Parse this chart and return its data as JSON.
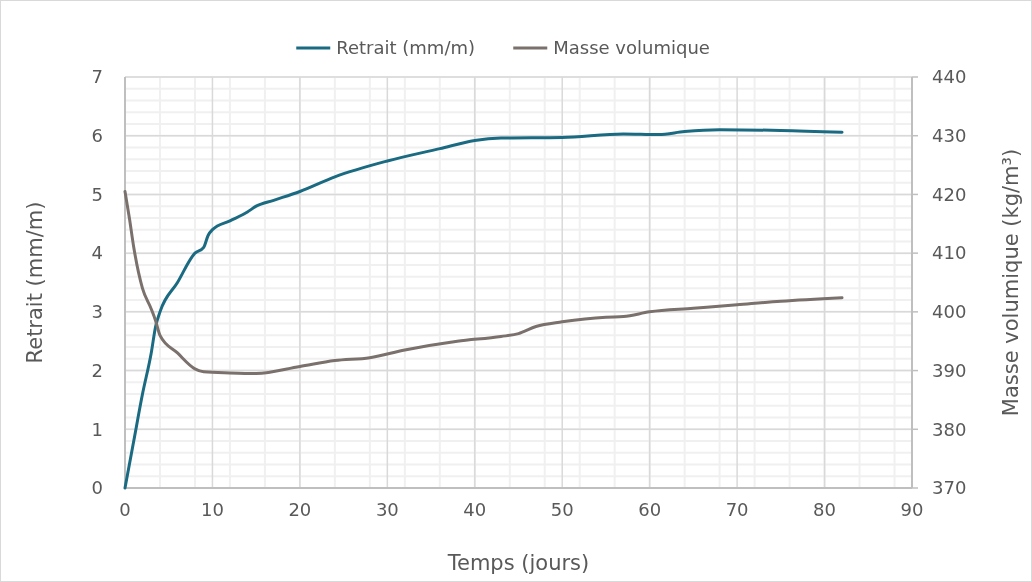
{
  "chart_data": {
    "type": "line",
    "xlabel": "Temps (jours)",
    "ylabel": "Retrait (mm/m)",
    "y2label": "Masse volumique (kg/m³)",
    "xlim": [
      0,
      90
    ],
    "xticks": [
      0,
      10,
      20,
      30,
      40,
      50,
      60,
      70,
      80,
      90
    ],
    "ylim": [
      0,
      7
    ],
    "yticks": [
      0,
      1,
      2,
      3,
      4,
      5,
      6,
      7
    ],
    "y2lim": [
      370,
      440
    ],
    "y2ticks": [
      370,
      380,
      390,
      400,
      410,
      420,
      430,
      440
    ],
    "grid": true,
    "legend": "top",
    "marker": "none",
    "line_style": "solid",
    "series": [
      {
        "name": "Retrait (mm/m)",
        "color": "#1a6a82",
        "x": [
          0,
          1,
          2,
          3,
          3.5,
          4,
          6,
          8,
          9,
          9.5,
          10,
          12,
          14,
          15,
          17,
          20,
          24,
          30,
          36,
          40,
          43,
          50,
          57,
          61,
          64,
          68,
          75,
          82
        ],
        "values": [
          0,
          0.8,
          1.6,
          2.3,
          2.75,
          3.0,
          3.5,
          4.0,
          4.1,
          4.3,
          4.4,
          4.55,
          4.7,
          4.8,
          4.9,
          5.05,
          5.3,
          5.57,
          5.78,
          5.92,
          5.96,
          5.97,
          6.03,
          6.02,
          6.07,
          6.1,
          6.09,
          6.06
        ]
      },
      {
        "name": "Masse volumique",
        "color": "#7a706c",
        "axis": "y2",
        "x": [
          0,
          0.5,
          1,
          2,
          3,
          3.5,
          4,
          6,
          8,
          9,
          12,
          15,
          20,
          24,
          28,
          32,
          38,
          43,
          45,
          47,
          50,
          55,
          57,
          60,
          65,
          70,
          75,
          82
        ],
        "values": [
          420.5,
          416,
          411,
          404,
          400.5,
          398.5,
          396,
          393,
          390.3,
          389.8,
          389.6,
          389.5,
          390.7,
          391.7,
          392.2,
          393.5,
          395,
          395.8,
          396.3,
          397.5,
          398.3,
          399.1,
          399.2,
          400,
          400.6,
          401.2,
          401.8,
          402.4
        ]
      }
    ]
  }
}
